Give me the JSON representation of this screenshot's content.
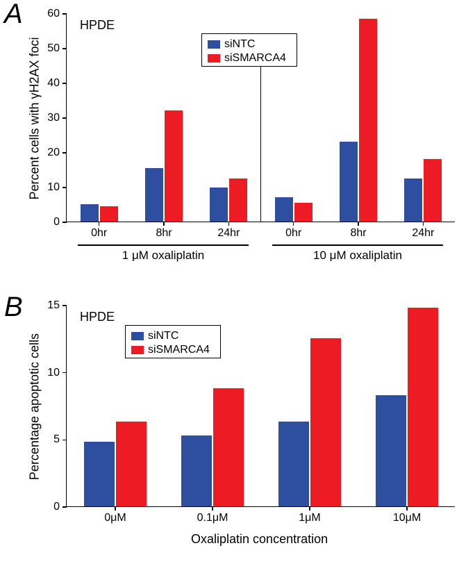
{
  "colors": {
    "siNTC": "#2e4ea0",
    "siSMARCA4": "#ed1c24",
    "axis": "#000000",
    "background": "#ffffff"
  },
  "panelA": {
    "label": "A",
    "cell_line": "HPDE",
    "ylabel": "Percent cells with γH2AX foci",
    "ylim": [
      0,
      60
    ],
    "ytick_step": 10,
    "legend": [
      {
        "label": "siNTC",
        "color": "#2e4ea0"
      },
      {
        "label": "siSMARCA4",
        "color": "#ed1c24"
      }
    ],
    "groups": [
      {
        "label": "1 μM oxaliplatin",
        "ticks": [
          "0hr",
          "8hr",
          "24hr"
        ]
      },
      {
        "label": "10 μM oxaliplatin",
        "ticks": [
          "0hr",
          "8hr",
          "24hr"
        ]
      }
    ],
    "data": {
      "siNTC": [
        5.0,
        15.5,
        9.8,
        7.0,
        23.0,
        12.5
      ],
      "siSMARCA4": [
        4.5,
        32.0,
        12.5,
        5.5,
        58.5,
        18.0
      ]
    }
  },
  "panelB": {
    "label": "B",
    "cell_line": "HPDE",
    "ylabel": "Percentage apoptotic cells",
    "xlabel": "Oxaliplatin concentration",
    "ylim": [
      0,
      15
    ],
    "ytick_step": 5,
    "xticks": [
      "0μM",
      "0.1μM",
      "1μM",
      "10μM"
    ],
    "legend": [
      {
        "label": "siNTC",
        "color": "#2e4ea0"
      },
      {
        "label": "siSMARCA4",
        "color": "#ed1c24"
      }
    ],
    "data": {
      "siNTC": [
        4.8,
        5.3,
        6.3,
        8.3
      ],
      "siSMARCA4": [
        6.3,
        8.8,
        12.5,
        14.8
      ]
    }
  }
}
